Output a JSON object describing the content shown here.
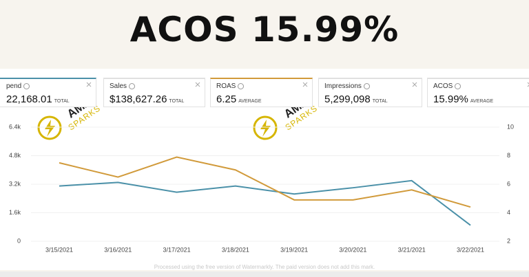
{
  "header": {
    "title": "ACOS 15.99%"
  },
  "cards": [
    {
      "label": "pend",
      "value": "22,168.01",
      "unit": "TOTAL"
    },
    {
      "label": "Sales",
      "value": "$138,627.26",
      "unit": "TOTAL"
    },
    {
      "label": "ROAS",
      "value": "6.25",
      "unit": "AVERAGE"
    },
    {
      "label": "Impressions",
      "value": "5,299,098",
      "unit": "TOTAL"
    },
    {
      "label": "ACOS",
      "value": "15.99%",
      "unit": "AVERAGE"
    }
  ],
  "watermarks": [
    {
      "top": "AMZ",
      "bottom": "SPARKS"
    },
    {
      "top": "AMZ",
      "bottom": "SPARKS"
    }
  ],
  "chart_data": {
    "type": "line",
    "categories": [
      "3/15/2021",
      "3/16/2021",
      "3/17/2021",
      "3/18/2021",
      "3/19/2021",
      "3/20/2021",
      "3/21/2021",
      "3/22/2021"
    ],
    "series": [
      {
        "color": "#4a90a8",
        "values": [
          3100,
          3300,
          2750,
          3100,
          2650,
          3000,
          3400,
          900
        ]
      },
      {
        "color": "#d19a3a",
        "axis": "y2",
        "values": [
          7.5,
          6.5,
          7.9,
          7.0,
          4.9,
          4.9,
          5.6,
          4.4
        ]
      }
    ],
    "ylim": [
      0,
      6400
    ],
    "yticks": [
      0,
      {
        "value": 1600,
        "label": "1.6k"
      },
      {
        "value": 3200,
        "label": "3.2k"
      },
      {
        "value": 4800,
        "label": "4.8k"
      },
      {
        "value": 6400,
        "label": "6.4k"
      }
    ],
    "y2lim": [
      2,
      10
    ],
    "y2ticks": [
      2,
      4,
      6,
      8,
      10
    ],
    "grid": true
  },
  "footer_note": "Processed using the free version of Watermarkly. The paid version does not add this mark."
}
